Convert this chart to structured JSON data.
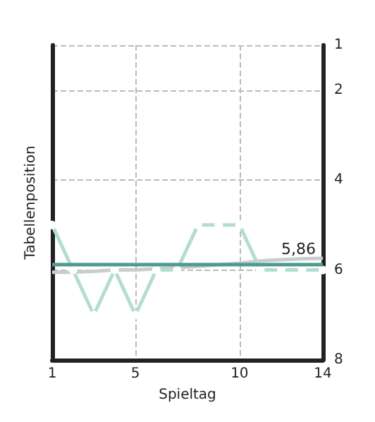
{
  "chart_data": {
    "type": "line",
    "xlabel": "Spieltag",
    "ylabel": "Tabellenposition",
    "x": [
      1,
      2,
      3,
      4,
      5,
      6,
      7,
      8,
      9,
      10,
      11,
      12,
      13,
      14
    ],
    "series": [
      {
        "color": "#b3ddd3",
        "marker": "circle",
        "values": [
          5,
          6,
          7,
          6,
          7,
          6,
          6,
          5,
          5,
          5,
          6,
          6,
          6,
          6
        ]
      },
      {
        "color": "#c8cdcd",
        "marker": "none",
        "values": [
          6.05,
          6.05,
          6.03,
          6.0,
          6.0,
          5.97,
          5.95,
          5.92,
          5.88,
          5.85,
          5.8,
          5.77,
          5.75,
          5.74
        ]
      }
    ],
    "ref_lines": [
      {
        "axis": "y",
        "value": 5.86,
        "label": "5,86",
        "color": "#4f9a8c"
      }
    ],
    "xlim": [
      1,
      14
    ],
    "xticks": [
      1,
      5,
      10,
      14
    ],
    "ylim": [
      8,
      1
    ],
    "yticks": [
      1,
      2,
      4,
      6,
      8
    ],
    "grid": true,
    "line_style": "solid"
  }
}
